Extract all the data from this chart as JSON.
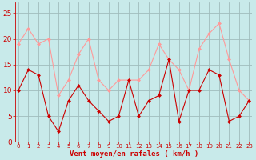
{
  "hours": [
    0,
    1,
    2,
    3,
    4,
    5,
    6,
    7,
    8,
    9,
    10,
    11,
    12,
    13,
    14,
    15,
    16,
    17,
    18,
    19,
    20,
    21,
    22,
    23
  ],
  "wind_avg": [
    10,
    14,
    13,
    5,
    2,
    8,
    11,
    8,
    6,
    4,
    5,
    12,
    5,
    8,
    9,
    16,
    4,
    10,
    10,
    14,
    13,
    4,
    5,
    8
  ],
  "wind_gust": [
    19,
    22,
    19,
    20,
    9,
    12,
    17,
    20,
    12,
    10,
    12,
    12,
    12,
    14,
    19,
    16,
    14,
    10,
    18,
    21,
    23,
    16,
    10,
    8
  ],
  "bg_color": "#c8eaea",
  "grid_color": "#a0bcbc",
  "line_avg_color": "#cc0000",
  "line_gust_color": "#ff9999",
  "marker_size": 2.5,
  "xlabel": "Vent moyen/en rafales ( km/h )",
  "xlabel_color": "#cc0000",
  "tick_color": "#cc0000",
  "ylim": [
    0,
    27
  ],
  "yticks": [
    0,
    5,
    10,
    15,
    20,
    25
  ],
  "xticks": [
    0,
    1,
    2,
    3,
    4,
    5,
    6,
    7,
    8,
    9,
    10,
    11,
    12,
    13,
    14,
    15,
    16,
    17,
    18,
    19,
    20,
    21,
    22,
    23
  ]
}
